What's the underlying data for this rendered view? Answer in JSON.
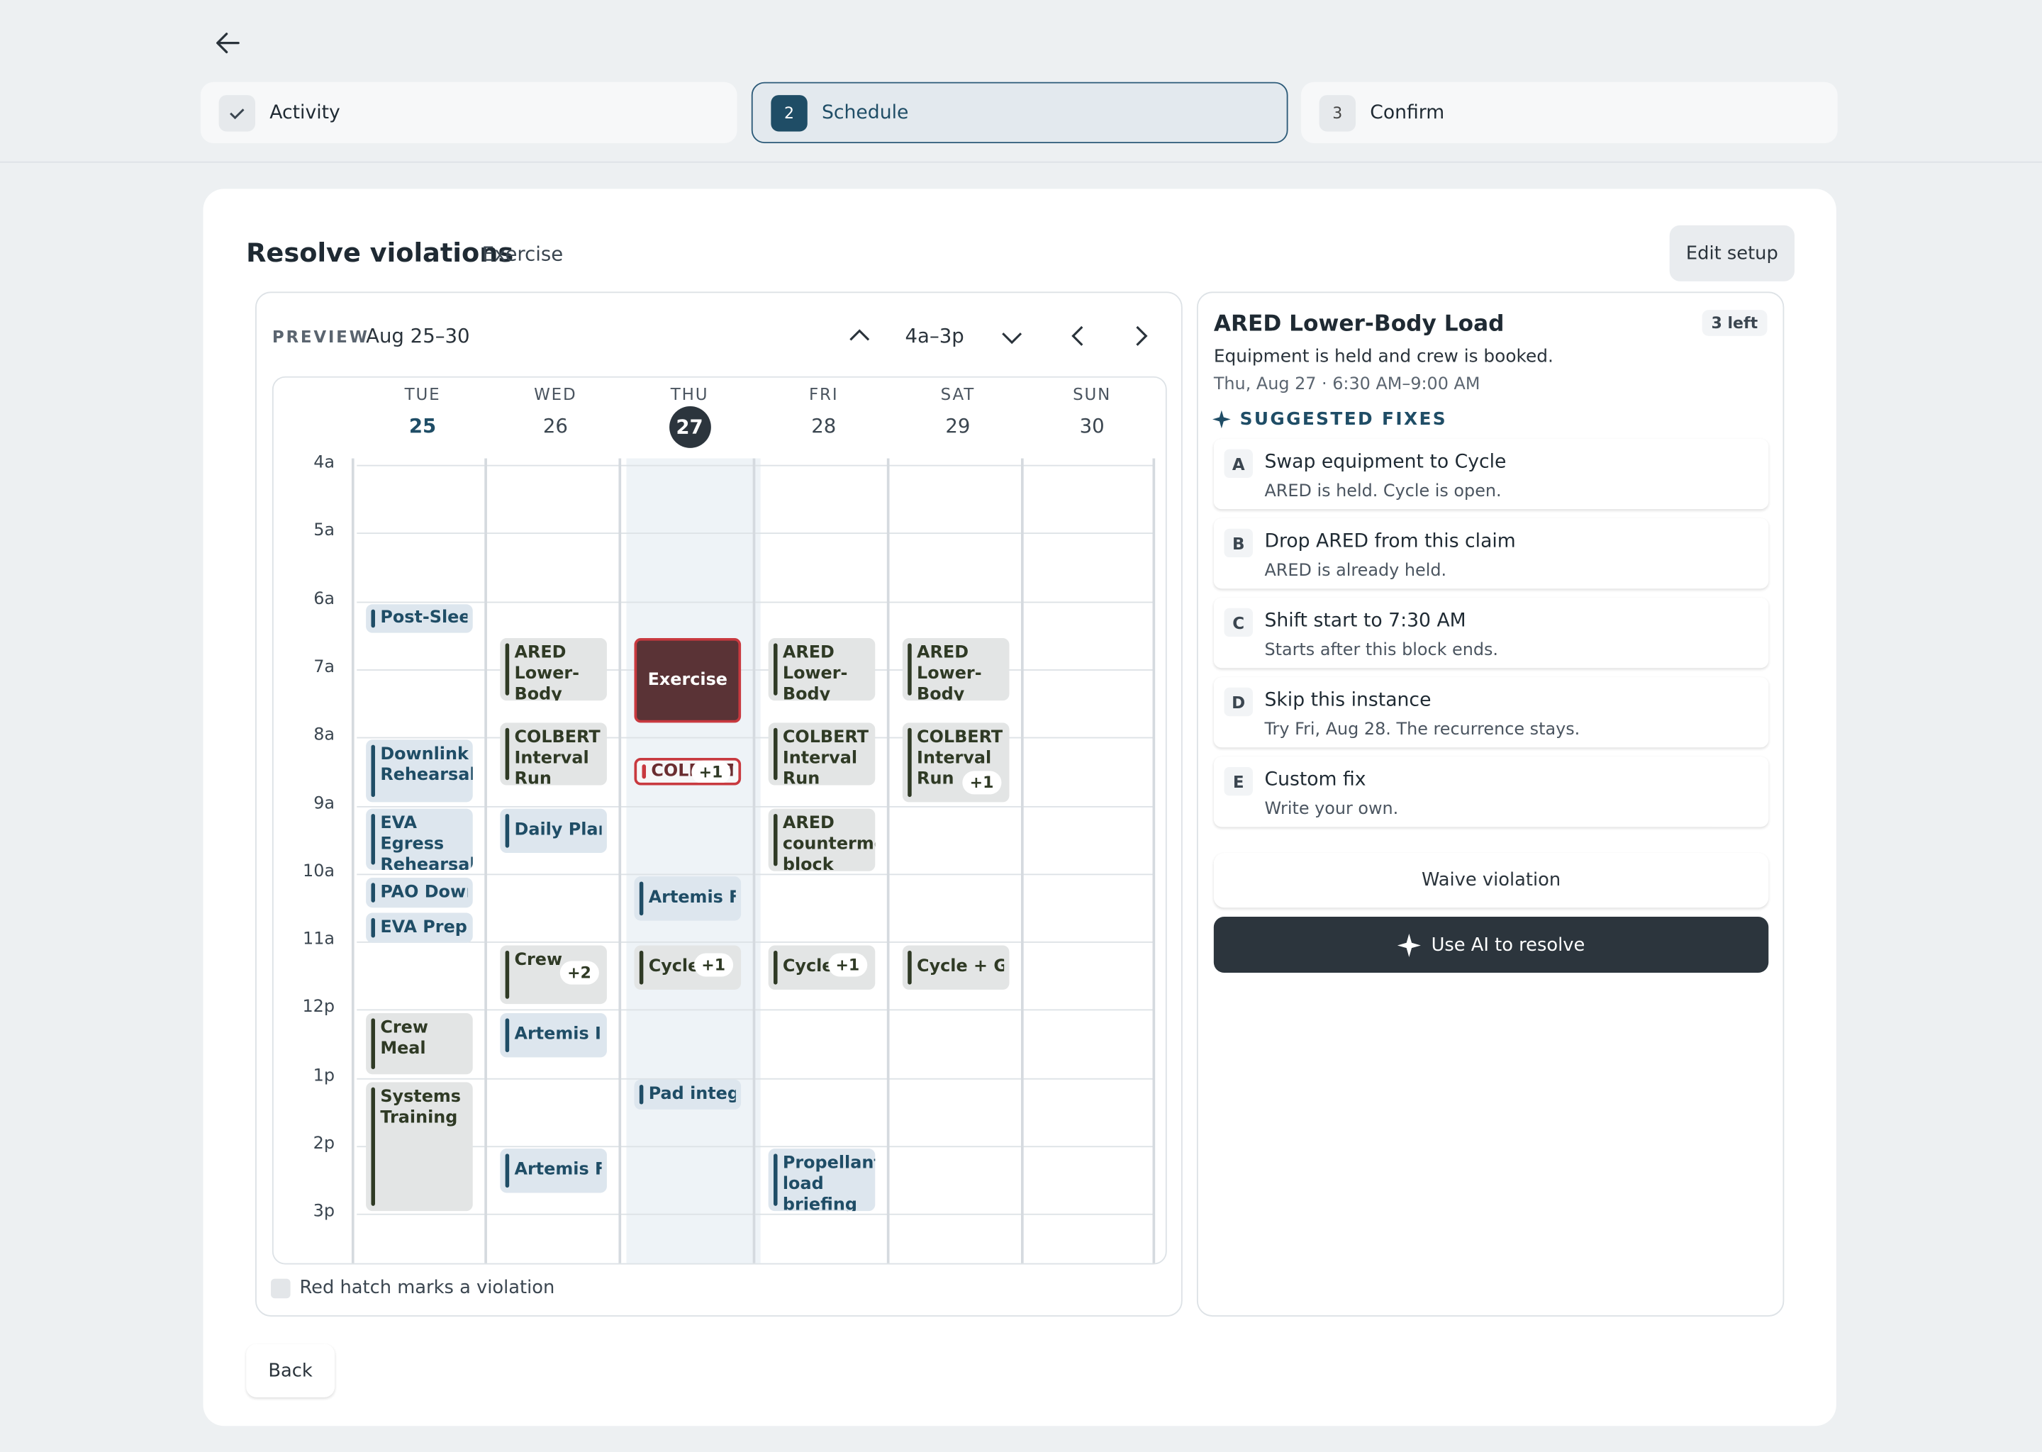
{
  "steps": [
    {
      "label": "Activity"
    },
    {
      "number": "2",
      "label": "Schedule"
    },
    {
      "number": "3",
      "label": "Confirm"
    }
  ],
  "header": {
    "title": "Resolve violations",
    "subtitle": "Exercise",
    "edit_button": "Edit setup"
  },
  "preview": {
    "label": "PREVIEW",
    "range": "Aug 25–30",
    "hours": "4a–3p",
    "legend": "Red hatch marks a violation"
  },
  "hours": [
    "4a",
    "5a",
    "6a",
    "7a",
    "8a",
    "9a",
    "10a",
    "11a",
    "12p",
    "1p",
    "2p",
    "3p"
  ],
  "days": [
    {
      "name": "TUE",
      "date": "25",
      "events": [
        {
          "title": "Post-Sleep"
        },
        {
          "title": "Downlink Rehearsal"
        },
        {
          "title": "EVA Egress Rehearsal"
        },
        {
          "title": "PAO Downlink"
        },
        {
          "title": "EVA Prep"
        },
        {
          "title": "Crew Meal"
        },
        {
          "title": "Systems Training"
        }
      ]
    },
    {
      "name": "WED",
      "date": "26",
      "events": [
        {
          "title": "ARED Lower-Body Load"
        },
        {
          "title": "COLBERT Interval Run"
        },
        {
          "title": "Daily Planning"
        },
        {
          "title": "Crew",
          "badge": "+2"
        },
        {
          "title": "Artemis II"
        },
        {
          "title": "Artemis Flight"
        }
      ]
    },
    {
      "name": "THU",
      "date": "27",
      "events": [
        {
          "title": "Exercise"
        },
        {
          "title": "COLBERT",
          "badge": "+1"
        },
        {
          "title": "Artemis Flight"
        },
        {
          "title": "Cycle",
          "badge": "+1"
        },
        {
          "title": "Pad integration"
        }
      ]
    },
    {
      "name": "FRI",
      "date": "28",
      "events": [
        {
          "title": "ARED Lower-Body Load"
        },
        {
          "title": "COLBERT Interval Run"
        },
        {
          "title": "ARED countermeasure block"
        },
        {
          "title": "Cycle",
          "badge": "+1"
        },
        {
          "title": "Propellant load briefing"
        }
      ]
    },
    {
      "name": "SAT",
      "date": "29",
      "events": [
        {
          "title": "ARED Lower-Body Load"
        },
        {
          "title": "COLBERT Interval Run",
          "badge": "+1"
        },
        {
          "title": "Cycle + Gait"
        }
      ]
    },
    {
      "name": "SUN",
      "date": "30",
      "events": []
    }
  ],
  "detail": {
    "title": "ARED Lower-Body Load",
    "remaining": "3 left",
    "description": "Equipment is held and crew is booked.",
    "time": "Thu, Aug 27 · 6:30 AM–9:00 AM",
    "fixes_heading": "SUGGESTED FIXES",
    "fixes": [
      {
        "key": "A",
        "title": "Swap equipment to Cycle",
        "note": "ARED is held. Cycle is open."
      },
      {
        "key": "B",
        "title": "Drop ARED from this claim",
        "note": "ARED is already held."
      },
      {
        "key": "C",
        "title": "Shift start to 7:30 AM",
        "note": "Starts after this block ends."
      },
      {
        "key": "D",
        "title": "Skip this instance",
        "note": "Try Fri, Aug 28. The recurrence stays."
      },
      {
        "key": "E",
        "title": "Custom fix",
        "note": "Write your own."
      }
    ],
    "waive_button": "Waive violation",
    "ai_button": "Use AI to resolve"
  },
  "footer": {
    "back_button": "Back"
  }
}
